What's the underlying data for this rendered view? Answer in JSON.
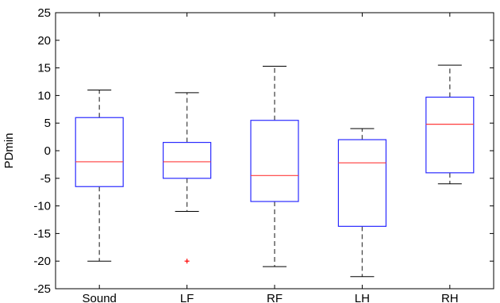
{
  "chart_data": {
    "type": "box",
    "title": "",
    "xlabel": "",
    "ylabel": "PDmin",
    "ylim": [
      -25,
      25
    ],
    "yticks": [
      -25,
      -20,
      -15,
      -10,
      -5,
      0,
      5,
      10,
      15,
      20,
      25
    ],
    "grid": false,
    "colors": {
      "box": "#2b2bff",
      "median": "#ff3b3b",
      "whisker": "#555555",
      "outlier": "#ff0000",
      "axis": "#000000"
    },
    "categories": [
      "Sound",
      "LF",
      "RF",
      "LH",
      "RH"
    ],
    "boxes": [
      {
        "category": "Sound",
        "whisker_low": -20,
        "q1": -6.5,
        "median": -2,
        "q3": 6,
        "whisker_high": 11,
        "outliers": []
      },
      {
        "category": "LF",
        "whisker_low": -11,
        "q1": -5,
        "median": -2,
        "q3": 1.5,
        "whisker_high": 10.5,
        "outliers": [
          -20
        ]
      },
      {
        "category": "RF",
        "whisker_low": -21,
        "q1": -9.2,
        "median": -4.5,
        "q3": 5.5,
        "whisker_high": 15.3,
        "outliers": []
      },
      {
        "category": "LH",
        "whisker_low": -22.8,
        "q1": -13.7,
        "median": -2.2,
        "q3": 2,
        "whisker_high": 4,
        "outliers": []
      },
      {
        "category": "RH",
        "whisker_low": -6,
        "q1": -4,
        "median": 4.8,
        "q3": 9.7,
        "whisker_high": 15.5,
        "outliers": []
      }
    ]
  }
}
